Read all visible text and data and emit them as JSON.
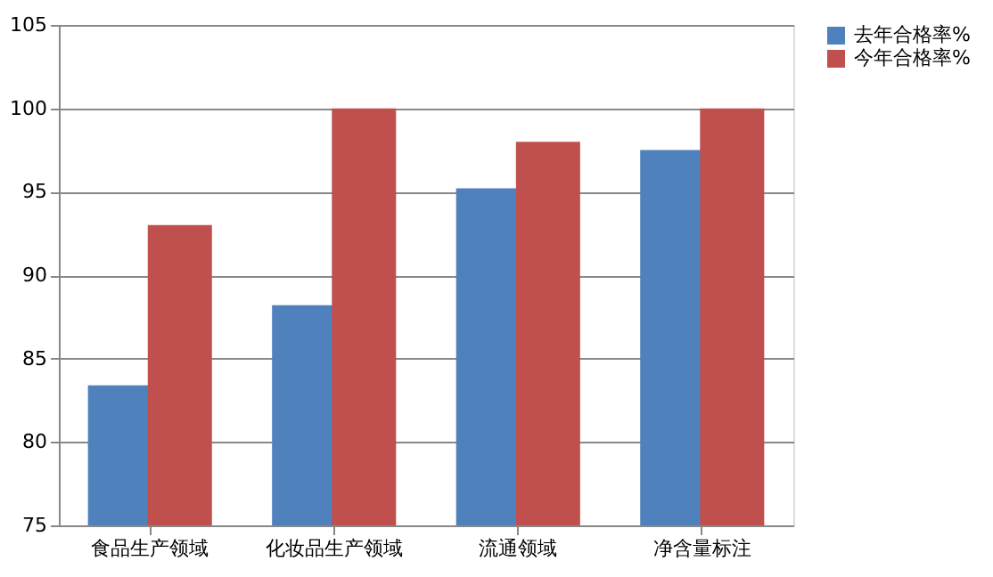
{
  "chart_data": {
    "type": "bar",
    "categories": [
      "食品生产领域",
      "化妆品生产领域",
      "流通领域",
      "净含量标注"
    ],
    "series": [
      {
        "name": "去年合格率%",
        "color": "#4f81bd",
        "values": [
          83.4,
          88.2,
          95.2,
          97.5
        ]
      },
      {
        "name": "今年合格率%",
        "color": "#c0504d",
        "values": [
          93.0,
          100.0,
          98.0,
          100.0
        ]
      }
    ],
    "ylim": [
      75,
      105
    ],
    "yticks": [
      75,
      80,
      85,
      90,
      95,
      100,
      105
    ],
    "grid": "y",
    "legend": "right"
  }
}
